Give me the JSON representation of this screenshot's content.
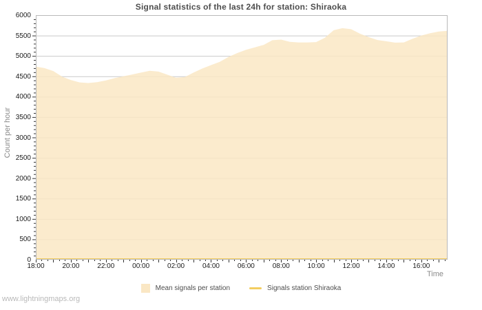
{
  "title": "Signal statistics of the last 24h for station: Shiraoka",
  "watermark": "www.lightningmaps.org",
  "axes": {
    "y_label": "Count per hour",
    "x_label": "Time"
  },
  "legend": {
    "items": [
      {
        "label": "Mean signals per station",
        "swatch": "area"
      },
      {
        "label": "Signals station Shiraoka",
        "swatch": "line"
      }
    ]
  },
  "colors": {
    "background": "#ffffff",
    "grid": "#c9c9c9",
    "border": "#b9b9b9",
    "tick": "#333333",
    "title_text": "#4d4d4d",
    "axis_text": "#1a1a1a",
    "muted_text": "#8a8a8a",
    "watermark_text": "#b9b9b9"
  },
  "chart_data": {
    "type": "area",
    "title": "Signal statistics of the last 24h for station: Shiraoka",
    "xlabel": "Time",
    "ylabel": "Count per hour",
    "x_start": "18:00",
    "hours_shown": 23.5,
    "sample_interval_hours": 0.5,
    "ylim": [
      0,
      6000
    ],
    "y_tick_step": 500,
    "y_minor_tick_step": 100,
    "y_tick_labels": [
      "0",
      "500",
      "1000",
      "1500",
      "2000",
      "2500",
      "3000",
      "3500",
      "4000",
      "4500",
      "5000",
      "5500",
      "6000"
    ],
    "x_tick_labels": [
      "18:00",
      "20:00",
      "22:00",
      "00:00",
      "02:00",
      "04:00",
      "06:00",
      "08:00",
      "10:00",
      "12:00",
      "14:00",
      "16:00"
    ],
    "x_tick_hours": [
      0,
      2,
      4,
      6,
      8,
      10,
      12,
      14,
      16,
      18,
      20,
      22
    ],
    "x_minor_tick_minutes": 20,
    "grid": "horizontal",
    "legend_position": "bottom",
    "series": [
      {
        "name": "Mean signals per station",
        "type": "area",
        "color": "#FAE7C4",
        "times": [
          "18:00",
          "18:30",
          "19:00",
          "19:30",
          "20:00",
          "20:30",
          "21:00",
          "21:30",
          "22:00",
          "22:30",
          "23:00",
          "23:30",
          "00:00",
          "00:30",
          "01:00",
          "01:30",
          "02:00",
          "02:30",
          "03:00",
          "03:30",
          "04:00",
          "04:30",
          "05:00",
          "05:30",
          "06:00",
          "06:30",
          "07:00",
          "07:30",
          "08:00",
          "08:30",
          "09:00",
          "09:30",
          "10:00",
          "10:30",
          "11:00",
          "11:30",
          "12:00",
          "12:30",
          "13:00",
          "13:30",
          "14:00",
          "14:30",
          "15:00",
          "15:30",
          "16:00",
          "16:30",
          "17:00",
          "17:30"
        ],
        "values": [
          4740,
          4700,
          4630,
          4490,
          4410,
          4350,
          4335,
          4355,
          4400,
          4455,
          4500,
          4545,
          4590,
          4635,
          4615,
          4540,
          4465,
          4480,
          4590,
          4690,
          4775,
          4855,
          4975,
          5070,
          5150,
          5210,
          5270,
          5385,
          5400,
          5345,
          5330,
          5330,
          5340,
          5445,
          5630,
          5680,
          5655,
          5545,
          5460,
          5390,
          5360,
          5325,
          5330,
          5420,
          5500,
          5555,
          5600,
          5615
        ]
      },
      {
        "name": "Signals station Shiraoka",
        "type": "line",
        "color": "#F3CD60",
        "constant_value": 0
      }
    ]
  }
}
